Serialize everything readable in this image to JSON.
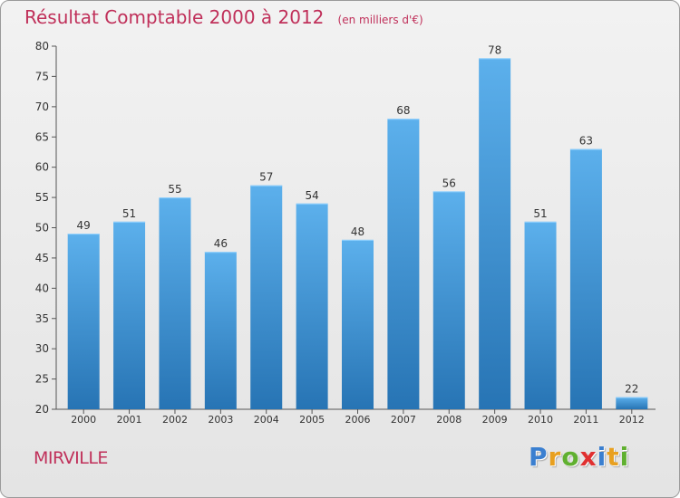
{
  "header": {
    "title": "Résultat Comptable 2000 à 2012",
    "subtitle": "(en milliers d'€)"
  },
  "footer": {
    "commune": "MIRVILLE",
    "logo_letters": [
      "P",
      "r",
      "o",
      "x",
      "i",
      "t",
      "i"
    ],
    "logo_colors": [
      "#3a7fd0",
      "#e8a020",
      "#60b030",
      "#e03030",
      "#3a7fd0",
      "#e8a020",
      "#60b030"
    ]
  },
  "colors": {
    "accent": "#c0305a",
    "bar_top": "#5aaeea",
    "bar_bottom": "#2a78b8",
    "axis": "#555555"
  },
  "chart_data": {
    "type": "bar",
    "title": "Résultat Comptable 2000 à 2012",
    "categories": [
      "2000",
      "2001",
      "2002",
      "2003",
      "2004",
      "2005",
      "2006",
      "2007",
      "2008",
      "2009",
      "2010",
      "2011",
      "2012"
    ],
    "values": [
      49,
      51,
      55,
      46,
      57,
      54,
      48,
      68,
      56,
      78,
      51,
      63,
      22
    ],
    "ylim": [
      20,
      80
    ],
    "yticks": [
      20,
      25,
      30,
      35,
      40,
      45,
      50,
      55,
      60,
      65,
      70,
      75,
      80
    ],
    "grid": false,
    "data_labels": true
  }
}
